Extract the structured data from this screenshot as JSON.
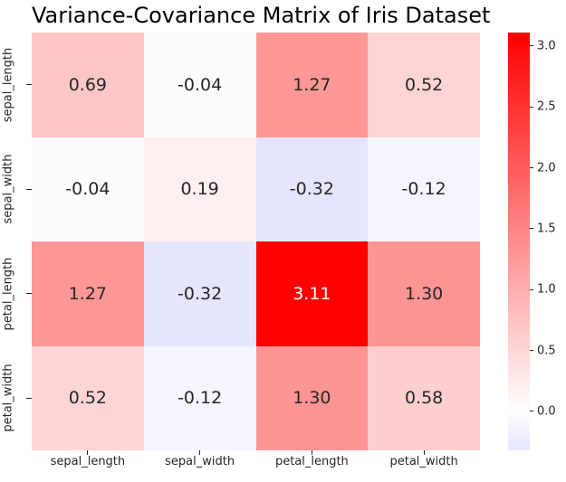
{
  "chart_data": {
    "type": "heatmap",
    "title": "Variance-Covariance Matrix of Iris Dataset",
    "x_categories": [
      "sepal_length",
      "sepal_width",
      "petal_length",
      "petal_width"
    ],
    "y_categories": [
      "sepal_length",
      "sepal_width",
      "petal_length",
      "petal_width"
    ],
    "matrix": [
      [
        0.69,
        -0.04,
        1.27,
        0.52
      ],
      [
        -0.04,
        0.19,
        -0.32,
        -0.12
      ],
      [
        1.27,
        -0.32,
        3.11,
        1.3
      ],
      [
        0.52,
        -0.12,
        1.3,
        0.58
      ]
    ],
    "annotation_decimals": 2,
    "colormap": "bwr-centered-at-0",
    "vmin": -0.32,
    "vmax": 3.11,
    "colorbar_ticks": [
      0.0,
      0.5,
      1.0,
      1.5,
      2.0,
      2.5,
      3.0
    ],
    "colorbar_tick_decimals": 1,
    "legend_position": "right",
    "grid": false,
    "colors": {
      "max_color": "#ff0000",
      "min_displayed_color": "#e5e5ff",
      "zero_color": "#ffffff",
      "annotation_dark": "#262626",
      "annotation_light": "#ffffff",
      "title_color": "#000000",
      "tick_color": "#262626",
      "background": "#ffffff"
    }
  }
}
